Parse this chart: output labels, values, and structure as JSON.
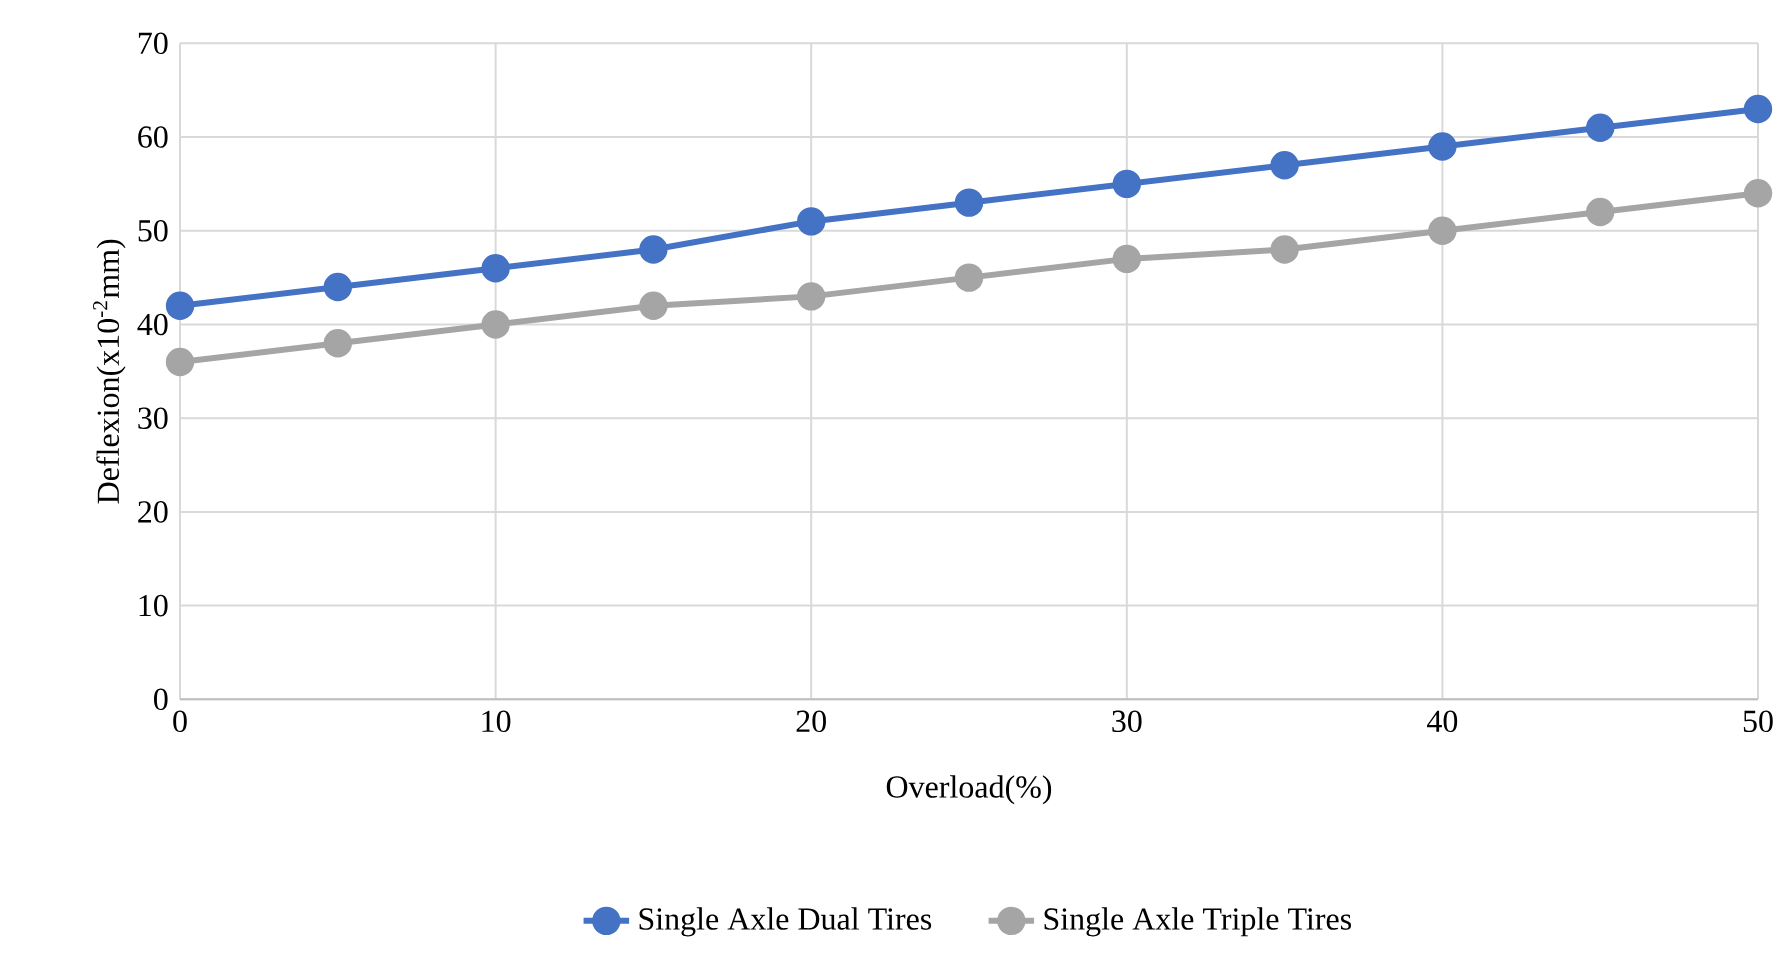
{
  "chart_data": {
    "type": "line",
    "xlabel": "Overload(%)",
    "ylabel": "Deflexion(x10$^{-2}$mm)",
    "x": [
      0,
      5,
      10,
      15,
      20,
      25,
      30,
      35,
      40,
      45,
      50
    ],
    "series": [
      {
        "name": "Single Axle Dual Tires",
        "color": "#4472c4",
        "values": [
          42,
          44,
          46,
          48,
          51,
          53,
          55,
          57,
          59,
          61,
          63
        ]
      },
      {
        "name": "Single Axle Triple Tires",
        "color": "#a5a5a5",
        "values": [
          36,
          38,
          40,
          42,
          43,
          45,
          47,
          48,
          50,
          52,
          54
        ]
      }
    ],
    "xlim": [
      0,
      50
    ],
    "ylim": [
      0,
      70
    ],
    "xticks": [
      0,
      10,
      20,
      30,
      40,
      50
    ],
    "yticks": [
      0,
      10,
      20,
      30,
      40,
      50,
      60,
      70
    ],
    "grid": true,
    "legend": "bottom",
    "marker": "circle",
    "line_style": "solid"
  }
}
